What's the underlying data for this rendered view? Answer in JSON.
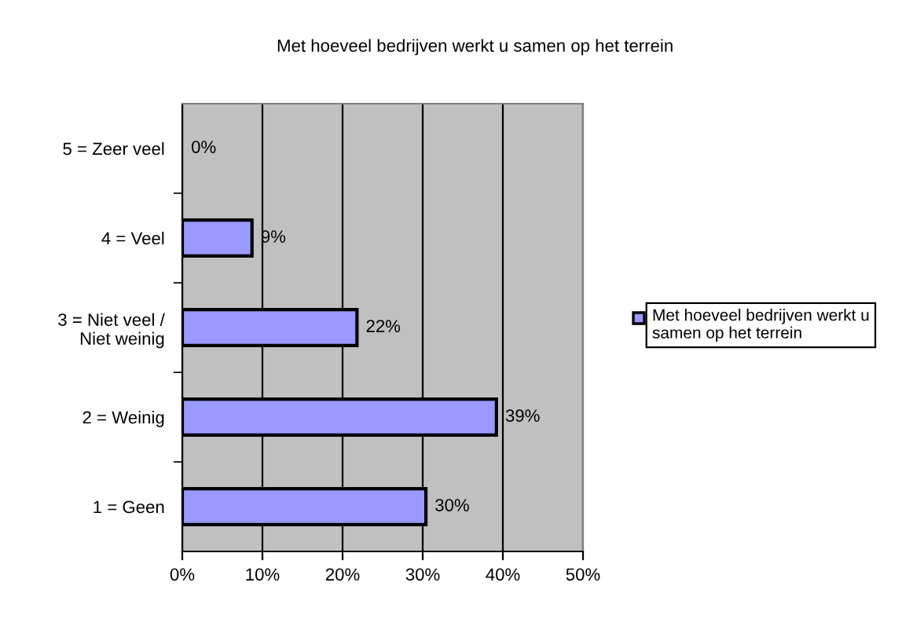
{
  "chart_data": {
    "type": "bar",
    "orientation": "horizontal",
    "title": "Met hoeveel bedrijven werkt u samen op het terrein",
    "categories": [
      "5 = Zeer veel",
      "4 = Veel",
      "3 = Niet veel /\nNiet weinig",
      "2 = Weinig",
      "1 = Geen"
    ],
    "series": [
      {
        "name": "Met hoeveel bedrijven werkt u samen op het terrein",
        "color": "#9999ff",
        "values": [
          0,
          8.7,
          21.8,
          39.2,
          30.4
        ],
        "value_labels": [
          "0%",
          "9%",
          "22%",
          "39%",
          "30%"
        ]
      }
    ],
    "xlim": [
      0,
      50
    ],
    "xticks": [
      {
        "value": 0,
        "label": "0%"
      },
      {
        "value": 10,
        "label": "10%"
      },
      {
        "value": 20,
        "label": "20%"
      },
      {
        "value": 30,
        "label": "30%"
      },
      {
        "value": 40,
        "label": "40%"
      },
      {
        "value": 50,
        "label": "50%"
      }
    ],
    "grid": "x",
    "legend": "right"
  }
}
